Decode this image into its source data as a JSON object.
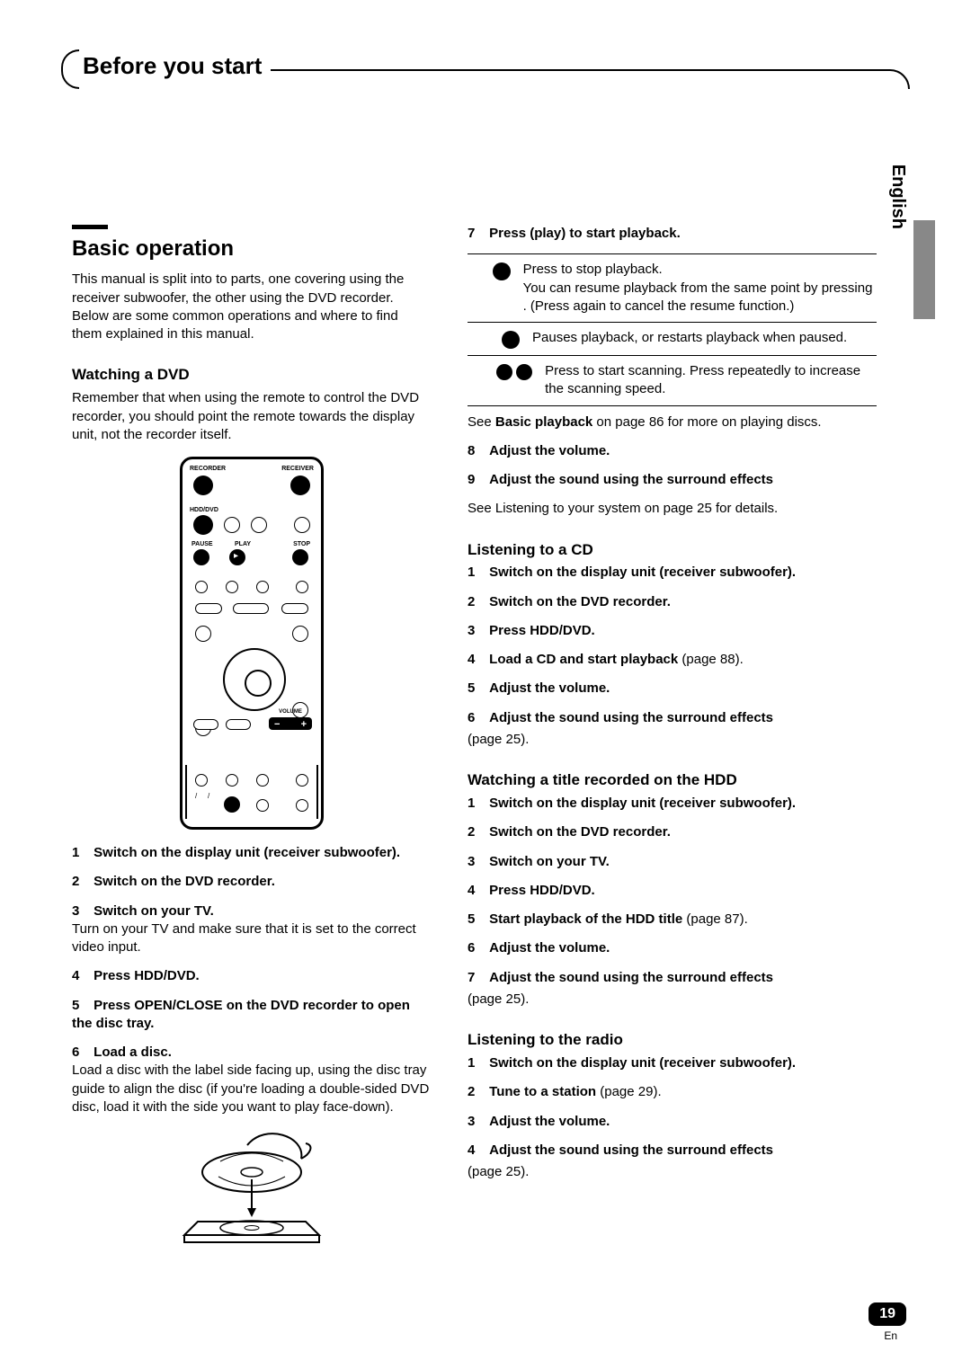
{
  "header": {
    "title": "Before you start"
  },
  "language_tab": "English",
  "page_number": "19",
  "page_lang_abbr": "En",
  "main": {
    "section_title": "Basic operation",
    "intro": "This manual is split into to parts, one covering using the receiver subwoofer, the other using the DVD recorder. Below are some common operations and where to find them explained in this manual.",
    "watching_dvd": {
      "heading": "Watching a DVD",
      "intro": "Remember that when using the remote to control the DVD recorder, you should point the remote towards the display unit, not the recorder itself.",
      "remote_labels": {
        "recorder": "RECORDER",
        "receiver": "RECEIVER",
        "hdd_dvd": "HDD/DVD",
        "pause": "PAUSE",
        "play": "PLAY",
        "stop": "STOP",
        "volume": "VOLUME"
      },
      "steps": [
        {
          "n": "1",
          "strong": "Switch on the display unit (receiver subwoofer)."
        },
        {
          "n": "2",
          "strong": "Switch on the DVD recorder."
        },
        {
          "n": "3",
          "strong": "Switch on your TV.",
          "note": "Turn on your TV and make sure that it is set to the correct video input."
        },
        {
          "n": "4",
          "strong": "Press HDD/DVD."
        },
        {
          "n": "5",
          "strong": "Press    OPEN/CLOSE on the DVD recorder to open the disc tray."
        },
        {
          "n": "6",
          "strong": "Load a disc.",
          "note": "Load a disc with the label side facing up, using the disc tray guide to align the disc (if you're loading a double-sided DVD disc, load it with the side you want to play face-down)."
        }
      ]
    },
    "step7": {
      "n": "7",
      "strong": "Press    (play) to start playback."
    },
    "controls": [
      {
        "text": "Press to stop playback.\nYou can resume playback from the same point by pressing    . (Press    again to cancel the resume function.)"
      },
      {
        "text": "Pauses playback, or restarts playback when paused."
      },
      {
        "text": "Press to start scanning. Press repeatedly to increase the scanning speed.",
        "double": true
      }
    ],
    "see_basic": {
      "pre": "See ",
      "bold": "Basic playback",
      "post": " on page 86 for more on playing discs."
    },
    "step8": {
      "n": "8",
      "strong": "Adjust the volume."
    },
    "step9": {
      "n": "9",
      "strong": "Adjust the sound using the surround effects"
    },
    "see_listening": {
      "pre": "See ",
      "ital": "Listening to your system",
      "post": " on page 25 for details."
    },
    "cd": {
      "heading": "Listening to a CD",
      "steps": [
        {
          "n": "1",
          "strong": "Switch on the display unit (receiver subwoofer)."
        },
        {
          "n": "2",
          "strong": "Switch on the DVD recorder."
        },
        {
          "n": "3",
          "strong": "Press HDD/DVD."
        },
        {
          "n": "4",
          "strong": "Load a CD and start playback",
          "suffix": " (page 88)."
        },
        {
          "n": "5",
          "strong": "Adjust the volume."
        },
        {
          "n": "6",
          "strong": "Adjust the sound using the surround effects",
          "note_inline": "(page 25)."
        }
      ]
    },
    "hdd": {
      "heading": "Watching a title recorded on the HDD",
      "steps": [
        {
          "n": "1",
          "strong": "Switch on the display unit (receiver subwoofer)."
        },
        {
          "n": "2",
          "strong": "Switch on the DVD recorder."
        },
        {
          "n": "3",
          "strong": "Switch on your TV."
        },
        {
          "n": "4",
          "strong": "Press HDD/DVD."
        },
        {
          "n": "5",
          "strong": "Start playback of the HDD title",
          "suffix": " (page 87)."
        },
        {
          "n": "6",
          "strong": "Adjust the volume."
        },
        {
          "n": "7",
          "strong": "Adjust the sound using the surround effects",
          "note_inline": "(page 25)."
        }
      ]
    },
    "radio": {
      "heading": "Listening to the radio",
      "steps": [
        {
          "n": "1",
          "strong": "Switch on the display unit (receiver subwoofer)."
        },
        {
          "n": "2",
          "strong": "Tune to a station",
          "suffix": " (page 29)."
        },
        {
          "n": "3",
          "strong": "Adjust the volume."
        },
        {
          "n": "4",
          "strong": "Adjust the sound using the surround effects",
          "note_inline": "(page 25)."
        }
      ]
    }
  }
}
